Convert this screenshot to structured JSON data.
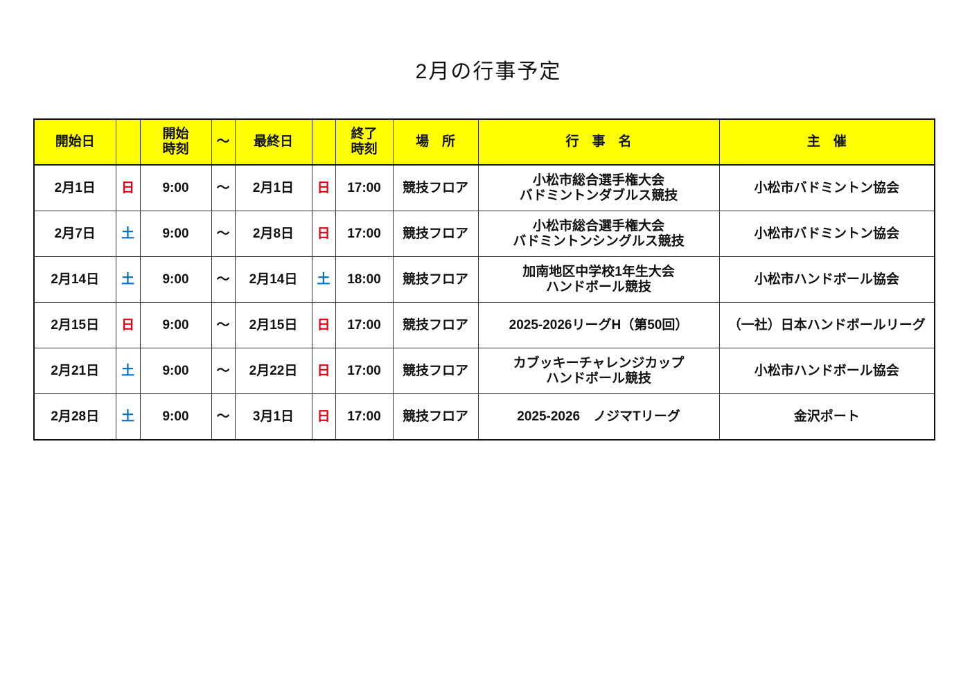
{
  "title": "2月の行事予定",
  "colors": {
    "header_bg": "#ffff00",
    "sunday": "#e60012",
    "saturday": "#0070c0"
  },
  "headers": [
    "開始日",
    "",
    "開始\n時刻",
    "～",
    "最終日",
    "",
    "終了\n時刻",
    "場　所",
    "行　事　名",
    "主　催"
  ],
  "rows": [
    {
      "start": "2月1日",
      "start_dow": "日",
      "start_time": "9:00",
      "tilde": "～",
      "end": "2月1日",
      "end_dow": "日",
      "end_time": "17:00",
      "place": "競技フロア",
      "event": [
        "小松市総合選手権大会",
        "バドミントンダブルス競技"
      ],
      "organizer": "小松市バドミントン協会"
    },
    {
      "start": "2月7日",
      "start_dow": "土",
      "start_time": "9:00",
      "tilde": "～",
      "end": "2月8日",
      "end_dow": "日",
      "end_time": "17:00",
      "place": "競技フロア",
      "event": [
        "小松市総合選手権大会",
        "バドミントンシングルス競技"
      ],
      "organizer": "小松市バドミントン協会"
    },
    {
      "start": "2月14日",
      "start_dow": "土",
      "start_time": "9:00",
      "tilde": "～",
      "end": "2月14日",
      "end_dow": "土",
      "end_time": "18:00",
      "place": "競技フロア",
      "event": [
        "加南地区中学校1年生大会",
        "ハンドボール競技"
      ],
      "organizer": "小松市ハンドボール協会"
    },
    {
      "start": "2月15日",
      "start_dow": "日",
      "start_time": "9:00",
      "tilde": "～",
      "end": "2月15日",
      "end_dow": "日",
      "end_time": "17:00",
      "place": "競技フロア",
      "event": [
        "2025-2026リーグH（第50回）"
      ],
      "organizer": "（一社）日本ハンドボールリーグ"
    },
    {
      "start": "2月21日",
      "start_dow": "土",
      "start_time": "9:00",
      "tilde": "～",
      "end": "2月22日",
      "end_dow": "日",
      "end_time": "17:00",
      "place": "競技フロア",
      "event": [
        "カブッキーチャレンジカップ",
        "ハンドボール競技"
      ],
      "organizer": "小松市ハンドボール協会"
    },
    {
      "start": "2月28日",
      "start_dow": "土",
      "start_time": "9:00",
      "tilde": "～",
      "end": "3月1日",
      "end_dow": "日",
      "end_time": "17:00",
      "place": "競技フロア",
      "event": [
        "2025-2026　ノジマTリーグ"
      ],
      "organizer": "金沢ポート"
    }
  ]
}
